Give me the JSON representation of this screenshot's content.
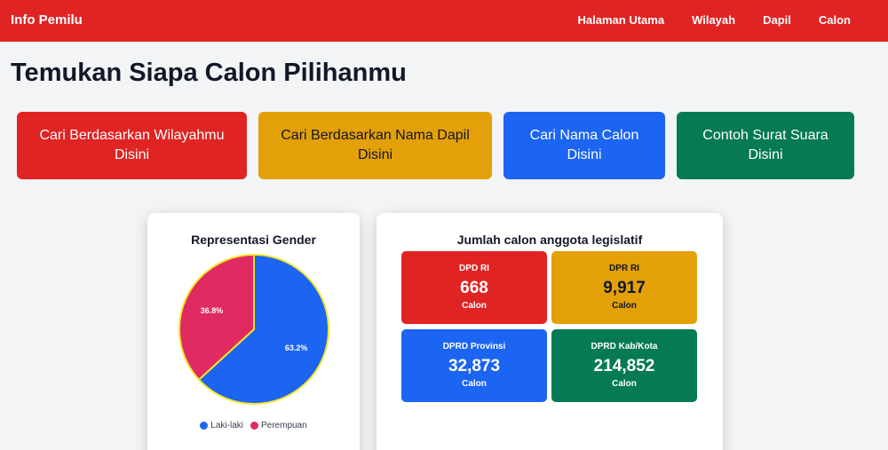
{
  "navbar": {
    "brand": "Info Pemilu",
    "links": [
      "Halaman Utama",
      "Wilayah",
      "Dapil",
      "Calon"
    ]
  },
  "page_title": "Temukan Siapa Calon Pilihanmu",
  "actions": [
    {
      "label": "Cari Berdasarkan Wilayahmu Disini"
    },
    {
      "label": "Cari Berdasarkan Nama Dapil Disini"
    },
    {
      "label": "Cari Nama Calon Disini"
    },
    {
      "label": "Contoh Surat Suara Disini"
    }
  ],
  "gender_card": {
    "title": "Representasi Gender"
  },
  "chart_data": {
    "type": "pie",
    "title": "Representasi Gender",
    "series": [
      {
        "name": "Laki-laki",
        "value": 63.2,
        "label": "63.2%",
        "color": "#1c64f2"
      },
      {
        "name": "Perempuan",
        "value": 36.8,
        "label": "36.8%",
        "color": "#e02a62"
      }
    ],
    "legend": "bottom"
  },
  "count_card": {
    "title": "Jumlah calon anggota legislatif",
    "stats": [
      {
        "label": "DPD RI",
        "value": "668",
        "unit": "Calon"
      },
      {
        "label": "DPR RI",
        "value": "9,917",
        "unit": "Calon"
      },
      {
        "label": "DPRD Provinsi",
        "value": "32,873",
        "unit": "Calon"
      },
      {
        "label": "DPRD Kab/Kota",
        "value": "214,852",
        "unit": "Calon"
      }
    ]
  },
  "colors": {
    "red": "#e02424",
    "yellow": "#e3a008",
    "blue": "#1c64f2",
    "green": "#057a55",
    "pink": "#e02a62"
  }
}
